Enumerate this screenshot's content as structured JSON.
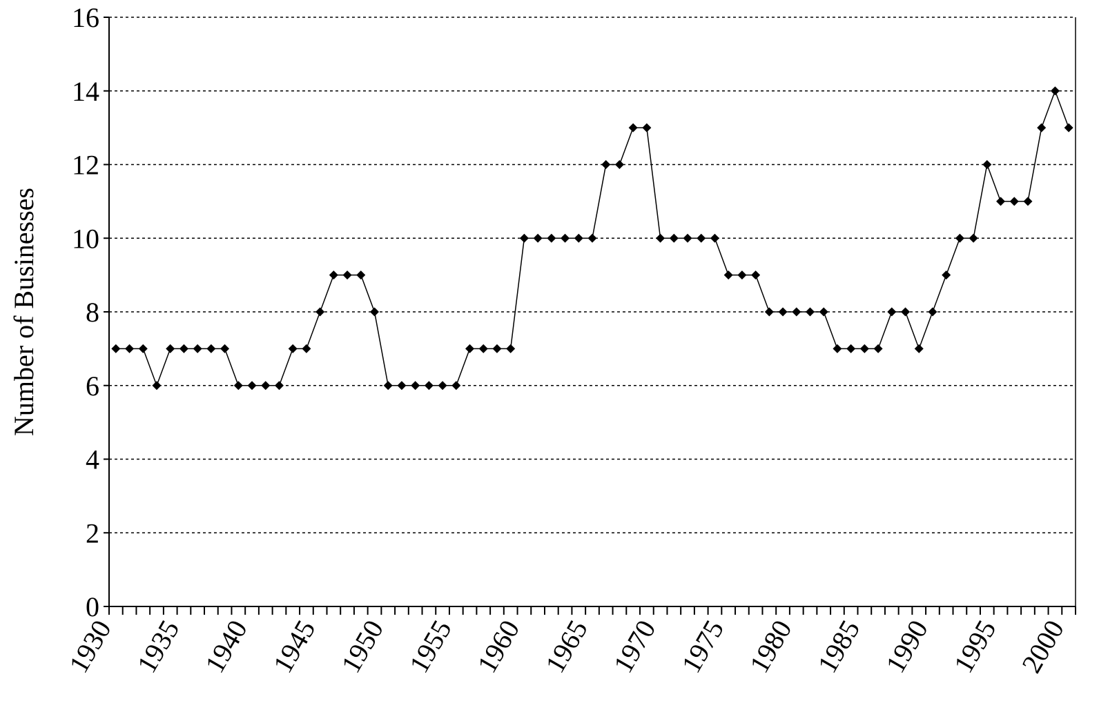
{
  "chart_data": {
    "type": "line",
    "y_label": "Number of Businesses",
    "categories": [
      "1930",
      null,
      null,
      null,
      null,
      "1935",
      null,
      null,
      null,
      null,
      "1940",
      null,
      null,
      null,
      null,
      "1945",
      null,
      null,
      null,
      null,
      "1950",
      null,
      null,
      null,
      null,
      "1955",
      null,
      null,
      null,
      null,
      "1960",
      null,
      null,
      null,
      null,
      "1965",
      null,
      null,
      null,
      null,
      "1970",
      null,
      null,
      null,
      null,
      "1975",
      null,
      null,
      null,
      null,
      "1980",
      null,
      null,
      null,
      null,
      "1985",
      null,
      null,
      null,
      null,
      "1990",
      null,
      null,
      null,
      null,
      "1995",
      null,
      null,
      null,
      null,
      "2000"
    ],
    "values": [
      7,
      7,
      7,
      6,
      7,
      7,
      7,
      7,
      7,
      6,
      6,
      6,
      6,
      7,
      7,
      8,
      9,
      9,
      9,
      8,
      6,
      6,
      6,
      6,
      6,
      6,
      7,
      7,
      7,
      7,
      10,
      10,
      10,
      10,
      10,
      10,
      12,
      12,
      13,
      13,
      10,
      10,
      10,
      10,
      10,
      9,
      9,
      9,
      8,
      8,
      8,
      8,
      8,
      7,
      7,
      7,
      7,
      8,
      8,
      7,
      8,
      9,
      10,
      10,
      12,
      11,
      11,
      11,
      13,
      14,
      13
    ],
    "color": "#000000",
    "ylim": [
      0,
      16
    ],
    "yticks": [
      0,
      2,
      4,
      6,
      8,
      10,
      12,
      14,
      16
    ],
    "grid": true
  }
}
